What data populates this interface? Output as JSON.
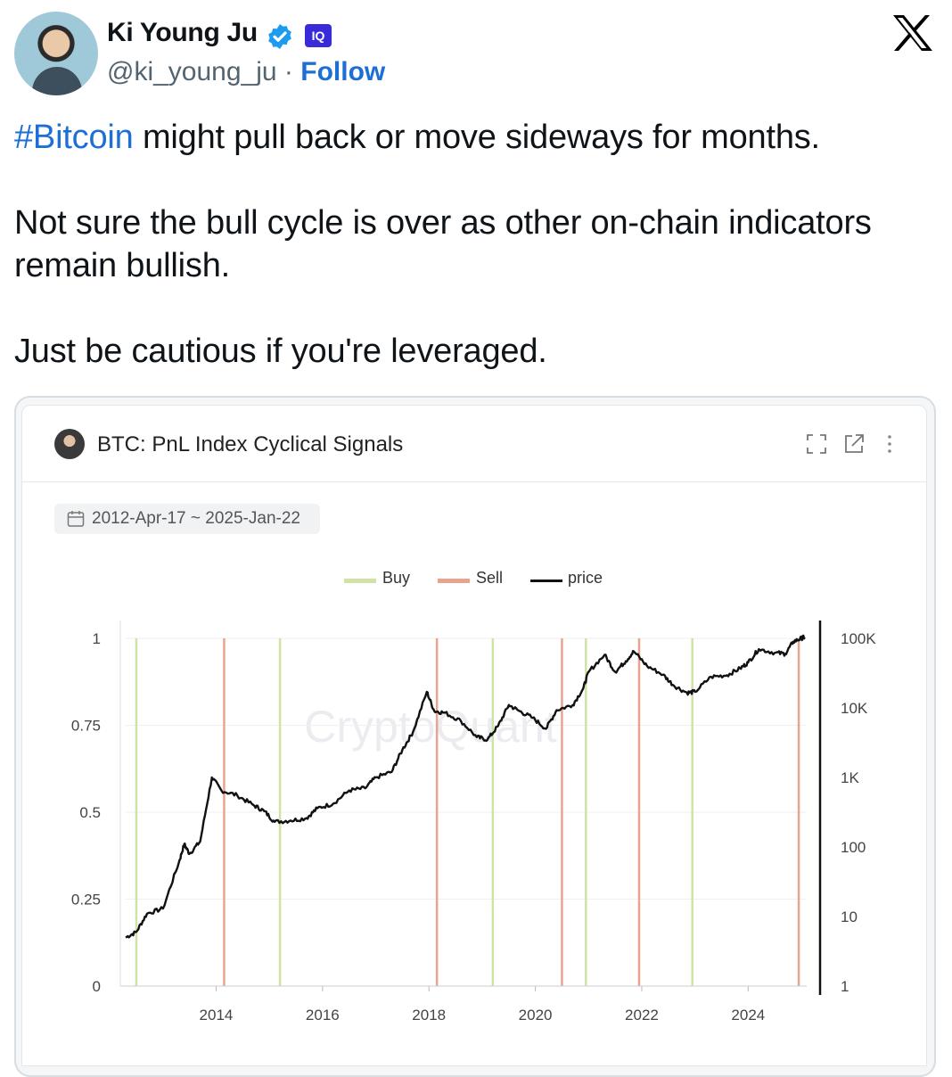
{
  "author": {
    "name": "Ki Young Ju",
    "handle": "@ki_young_ju",
    "separator": "·",
    "follow_label": "Follow",
    "affiliate_badge": "IQ",
    "verified": true
  },
  "tweet": {
    "hashtag": "#Bitcoin",
    "line1_rest": " might pull back or move sideways for months.",
    "paragraph2": "Not sure the bull cycle is over as other on-chain indicators remain bullish.",
    "paragraph3": "Just be cautious if you're leveraged."
  },
  "card": {
    "title": "BTC: PnL Index Cyclical Signals",
    "date_range": "2012-Apr-17 ~ 2025-Jan-22",
    "icons": [
      "fullscreen-icon",
      "open-external-icon",
      "more-options-icon"
    ],
    "watermark": "CryptoQuant"
  },
  "colors": {
    "link": "#1d6fd6",
    "buy": "#cfe3a6",
    "sell": "#e9a48f",
    "price": "#111111",
    "brand_x": "#000000"
  },
  "chart_data": {
    "type": "line",
    "title": "BTC: PnL Index Cyclical Signals",
    "legend": [
      "Buy",
      "Sell",
      "price"
    ],
    "legend_placement": "top-center",
    "x_ticks": [
      "2014",
      "2016",
      "2018",
      "2020",
      "2022",
      "2024"
    ],
    "x_range": [
      2012.3,
      2025.1
    ],
    "y_left": {
      "ticks": [
        "0",
        "0.25",
        "0.5",
        "0.75",
        "1"
      ],
      "range": [
        0,
        1
      ]
    },
    "y_right": {
      "scale": "log",
      "ticks": [
        "1",
        "10",
        "100",
        "1K",
        "10K",
        "100K"
      ],
      "range": [
        1,
        100000
      ]
    },
    "buy_signals": [
      2012.5,
      2015.2,
      2019.2,
      2020.95,
      2022.95
    ],
    "sell_signals": [
      2014.15,
      2018.15,
      2020.5,
      2021.95,
      2024.95
    ],
    "price_series": [
      [
        2012.3,
        5
      ],
      [
        2012.5,
        6
      ],
      [
        2012.7,
        11
      ],
      [
        2013.0,
        13
      ],
      [
        2013.3,
        60
      ],
      [
        2013.4,
        110
      ],
      [
        2013.5,
        80
      ],
      [
        2013.7,
        120
      ],
      [
        2013.92,
        1000
      ],
      [
        2014.1,
        650
      ],
      [
        2014.4,
        550
      ],
      [
        2014.7,
        400
      ],
      [
        2014.9,
        330
      ],
      [
        2015.1,
        230
      ],
      [
        2015.4,
        240
      ],
      [
        2015.7,
        260
      ],
      [
        2015.9,
        360
      ],
      [
        2016.2,
        420
      ],
      [
        2016.5,
        650
      ],
      [
        2016.8,
        700
      ],
      [
        2017.0,
        1000
      ],
      [
        2017.3,
        1200
      ],
      [
        2017.5,
        2500
      ],
      [
        2017.7,
        4500
      ],
      [
        2017.96,
        17000
      ],
      [
        2018.1,
        9000
      ],
      [
        2018.3,
        8500
      ],
      [
        2018.6,
        6500
      ],
      [
        2018.9,
        3800
      ],
      [
        2019.1,
        3500
      ],
      [
        2019.3,
        5500
      ],
      [
        2019.5,
        11000
      ],
      [
        2019.7,
        9000
      ],
      [
        2019.95,
        7200
      ],
      [
        2020.2,
        5000
      ],
      [
        2020.4,
        9300
      ],
      [
        2020.7,
        11000
      ],
      [
        2020.9,
        19000
      ],
      [
        2021.0,
        33000
      ],
      [
        2021.3,
        58000
      ],
      [
        2021.5,
        33000
      ],
      [
        2021.7,
        47000
      ],
      [
        2021.85,
        65000
      ],
      [
        2022.1,
        40000
      ],
      [
        2022.4,
        30000
      ],
      [
        2022.6,
        21000
      ],
      [
        2022.85,
        16500
      ],
      [
        2023.0,
        17000
      ],
      [
        2023.3,
        28000
      ],
      [
        2023.6,
        29500
      ],
      [
        2023.85,
        37000
      ],
      [
        2024.0,
        45000
      ],
      [
        2024.2,
        70000
      ],
      [
        2024.5,
        62000
      ],
      [
        2024.7,
        60000
      ],
      [
        2024.85,
        90000
      ],
      [
        2025.0,
        100000
      ],
      [
        2025.06,
        104000
      ]
    ]
  }
}
